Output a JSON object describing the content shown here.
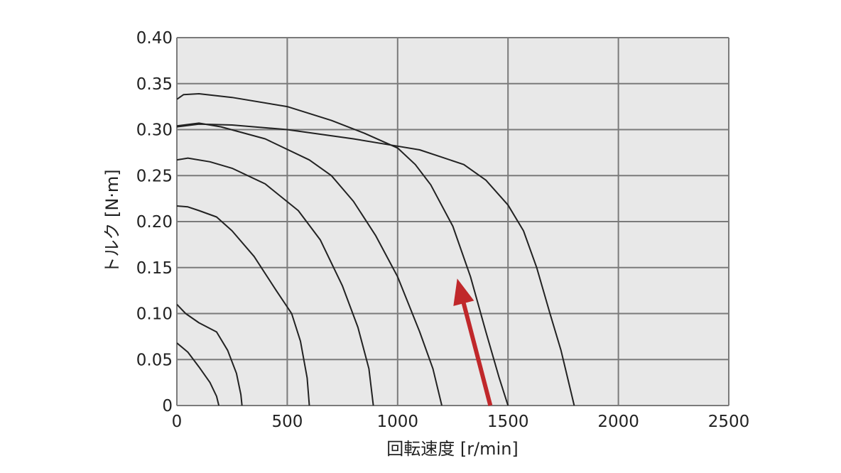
{
  "chart_data": {
    "type": "line",
    "xlabel": "回転速度 [r/min]",
    "ylabel": "トルク [N·m]",
    "xlim": [
      0,
      2500
    ],
    "ylim": [
      0,
      0.4
    ],
    "x_ticks": [
      0,
      500,
      1000,
      1500,
      2000,
      2500
    ],
    "x_tick_labels": [
      "0",
      "500",
      "1000",
      "1500",
      "2000",
      "2500"
    ],
    "y_ticks": [
      0,
      0.05,
      0.1,
      0.15,
      0.2,
      0.25,
      0.3,
      0.35,
      0.4
    ],
    "y_tick_labels": [
      "0",
      "0.05",
      "0.10",
      "0.15",
      "0.20",
      "0.25",
      "0.30",
      "0.35",
      "0.40"
    ],
    "grid": true,
    "plot_background": "#e8e8e8",
    "grid_color": "#7a7a7a",
    "line_color": "#222222",
    "series": [
      {
        "points": [
          [
            0,
            0.068
          ],
          [
            50,
            0.058
          ],
          [
            100,
            0.042
          ],
          [
            150,
            0.025
          ],
          [
            180,
            0.01
          ],
          [
            190,
            0
          ]
        ]
      },
      {
        "points": [
          [
            0,
            0.11
          ],
          [
            40,
            0.1
          ],
          [
            100,
            0.09
          ],
          [
            180,
            0.08
          ],
          [
            230,
            0.06
          ],
          [
            270,
            0.035
          ],
          [
            290,
            0.012
          ],
          [
            295,
            0
          ]
        ]
      },
      {
        "points": [
          [
            0,
            0.217
          ],
          [
            50,
            0.216
          ],
          [
            100,
            0.212
          ],
          [
            180,
            0.205
          ],
          [
            250,
            0.19
          ],
          [
            350,
            0.162
          ],
          [
            450,
            0.125
          ],
          [
            520,
            0.1
          ],
          [
            560,
            0.07
          ],
          [
            590,
            0.03
          ],
          [
            600,
            0
          ]
        ]
      },
      {
        "points": [
          [
            0,
            0.267
          ],
          [
            50,
            0.269
          ],
          [
            150,
            0.265
          ],
          [
            250,
            0.258
          ],
          [
            400,
            0.241
          ],
          [
            550,
            0.212
          ],
          [
            650,
            0.18
          ],
          [
            750,
            0.13
          ],
          [
            820,
            0.085
          ],
          [
            870,
            0.04
          ],
          [
            890,
            0
          ]
        ]
      },
      {
        "points": [
          [
            0,
            0.304
          ],
          [
            100,
            0.307
          ],
          [
            200,
            0.303
          ],
          [
            400,
            0.29
          ],
          [
            600,
            0.267
          ],
          [
            700,
            0.25
          ],
          [
            800,
            0.222
          ],
          [
            900,
            0.185
          ],
          [
            1000,
            0.14
          ],
          [
            1100,
            0.08
          ],
          [
            1160,
            0.04
          ],
          [
            1200,
            0
          ]
        ]
      },
      {
        "points": [
          [
            0,
            0.333
          ],
          [
            30,
            0.338
          ],
          [
            100,
            0.339
          ],
          [
            250,
            0.335
          ],
          [
            500,
            0.325
          ],
          [
            700,
            0.31
          ],
          [
            850,
            0.296
          ],
          [
            1000,
            0.28
          ],
          [
            1080,
            0.262
          ],
          [
            1150,
            0.24
          ],
          [
            1250,
            0.195
          ],
          [
            1330,
            0.14
          ],
          [
            1400,
            0.08
          ],
          [
            1460,
            0.03
          ],
          [
            1500,
            0
          ]
        ]
      },
      {
        "points": [
          [
            0,
            0.303
          ],
          [
            100,
            0.306
          ],
          [
            250,
            0.305
          ],
          [
            500,
            0.3
          ],
          [
            800,
            0.29
          ],
          [
            1000,
            0.282
          ],
          [
            1100,
            0.278
          ],
          [
            1200,
            0.27
          ],
          [
            1300,
            0.262
          ],
          [
            1400,
            0.245
          ],
          [
            1500,
            0.218
          ],
          [
            1570,
            0.19
          ],
          [
            1630,
            0.15
          ],
          [
            1690,
            0.1
          ],
          [
            1740,
            0.06
          ],
          [
            1790,
            0.01
          ],
          [
            1800,
            0
          ]
        ]
      }
    ],
    "annotations": [
      {
        "type": "arrow",
        "color": "#c0282b",
        "from": [
          1420,
          0
        ],
        "to": [
          1270,
          0.138
        ]
      }
    ]
  }
}
